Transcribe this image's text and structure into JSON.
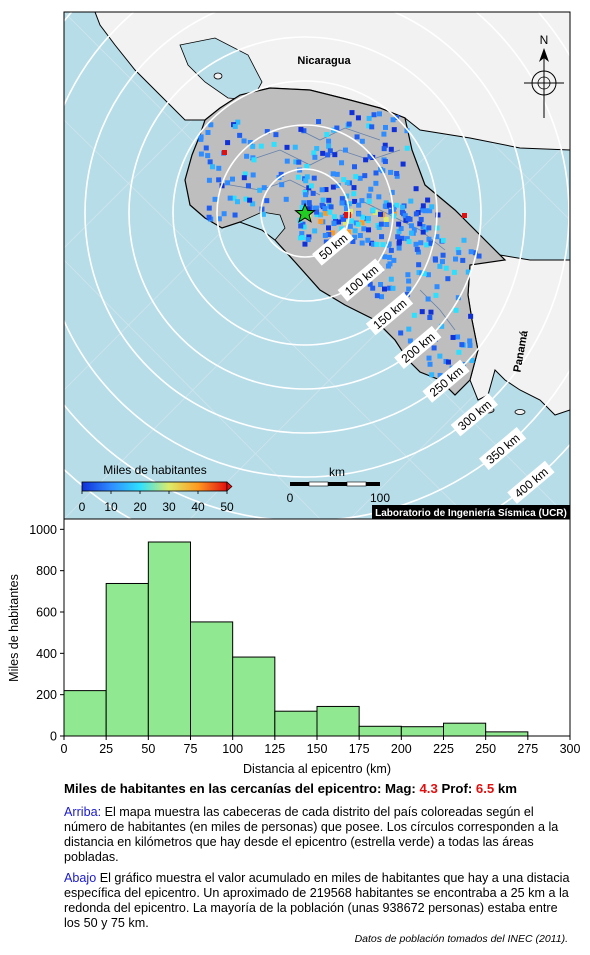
{
  "map": {
    "country_labels": {
      "nicaragua": "Nicaragua",
      "panama": "Panamá"
    },
    "north_label": "N",
    "colorbar": {
      "title": "Miles de habitantes",
      "ticks": [
        "0",
        "10",
        "20",
        "30",
        "40",
        "50"
      ]
    },
    "scalebar": {
      "title": "km",
      "ticks": [
        "0",
        "100"
      ]
    },
    "ring_labels": [
      "50 km",
      "100 km",
      "150 km",
      "200 km",
      "250 km",
      "300 km",
      "350 km",
      "400 km"
    ],
    "lab_label": "Laboratorio de Ingeniería Sísmica (UCR)",
    "colors": {
      "sea": "#b7dde9",
      "land_country": "#bebebe",
      "land_other": "#f2f2f2",
      "epicenter": "#22cc22"
    }
  },
  "chart_data": {
    "type": "bar",
    "bin_edges": [
      0,
      25,
      50,
      75,
      100,
      125,
      150,
      175,
      200,
      225,
      250,
      275
    ],
    "values": [
      219.568,
      738,
      938.672,
      552,
      382,
      120,
      143,
      47,
      45,
      62,
      20
    ],
    "xlabel": "Distancia al epicentro (km)",
    "ylabel": "Miles de habitantes",
    "xlim": [
      0,
      300
    ],
    "ylim": [
      0,
      1050
    ],
    "xticks": [
      "0",
      "25",
      "50",
      "75",
      "100",
      "125",
      "150",
      "175",
      "200",
      "225",
      "250",
      "275",
      "300"
    ],
    "yticks": [
      "0",
      "200",
      "400",
      "600",
      "800",
      "1000"
    ],
    "bar_color": "#90e890",
    "grid": false
  },
  "caption": {
    "title": "Miles de habitantes en las cercanías del epicentro: Mag: ",
    "mag": "4.3",
    "prof_label": " Prof: ",
    "prof": "6.5",
    "unit": " km",
    "p1_label": "Arriba:",
    "p1_text": " El mapa muestra las cabeceras de cada distrito del país coloreadas según el número de habitantes (en miles de personas) que posee.  Los círculos corresponden a la distancia en kilómetros que hay desde el epicentro (estrella verde) a todas las áreas pobladas.",
    "p2_label": "Abajo",
    "p2_text": " El gráfico muestra el valor acumulado en miles de habitantes que hay a una distacia específica del epicentro.  Un aproximado de 219568 habitantes se encontraba a 25 km a la redonda del epicentro.  La mayoría de la población (unas 938672 personas) estaba entre los 50 y 75 km.",
    "credit": "Datos de población tomados del INEC (2011)."
  }
}
